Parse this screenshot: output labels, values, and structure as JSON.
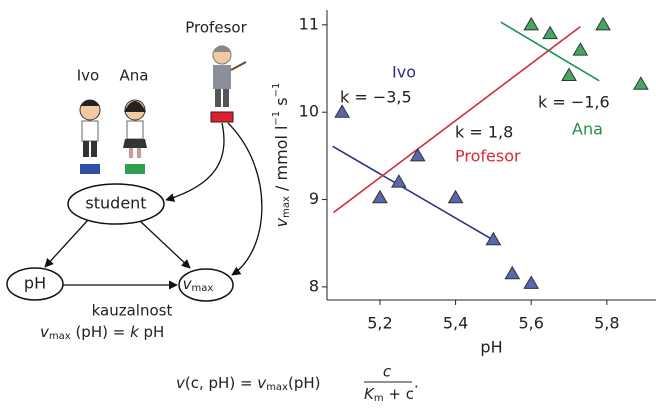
{
  "diagram": {
    "teacher": "Profesor",
    "students": [
      "Ivo",
      "Ana"
    ],
    "node_student": "student",
    "node_ph": "pH",
    "node_vmax": [
      "v",
      "max"
    ],
    "caption": "kauzalnost",
    "relation": [
      "v",
      "max",
      " (pH) = ",
      "k",
      "  pH"
    ]
  },
  "formula": [
    "v",
    "(c, pH) = ",
    "v",
    "max",
    "(pH)",
    "c",
    "K",
    "m",
    " + c",
    "."
  ],
  "chart_data": {
    "type": "scatter",
    "xlabel": "pH",
    "ylabel": [
      "v",
      "max",
      " / mmol l",
      "−1",
      " s",
      "−1"
    ],
    "xlim": [
      5.06,
      5.93
    ],
    "ylim": [
      7.85,
      11.17
    ],
    "xticks": [
      {
        "value": 5.2,
        "label": "5,2"
      },
      {
        "value": 5.4,
        "label": "5,4"
      },
      {
        "value": 5.6,
        "label": "5,6"
      },
      {
        "value": 5.8,
        "label": "5,8"
      }
    ],
    "yticks": [
      8,
      9,
      10,
      11
    ],
    "series": [
      {
        "type": "scatter",
        "color": "#5866b0",
        "x": [
          5.1,
          5.2,
          5.25,
          5.3,
          5.4,
          5.5,
          5.55,
          5.6
        ],
        "values": [
          10.0,
          9.02,
          9.2,
          9.5,
          9.02,
          8.54,
          8.15,
          8.04
        ]
      },
      {
        "type": "scatter",
        "color": "#45a860",
        "x": [
          5.6,
          5.65,
          5.7,
          5.73,
          5.79,
          5.89
        ],
        "values": [
          11.0,
          10.9,
          10.42,
          10.71,
          11.0,
          10.32
        ]
      },
      {
        "type": "line",
        "name": "Ivo",
        "label": "k = −3,5",
        "color": "#2b2f85",
        "x": [
          5.075,
          5.51
        ],
        "values": [
          9.61,
          8.51
        ]
      },
      {
        "type": "line",
        "name": "Profesor",
        "label": "k = 1,8",
        "color": "#d62a36",
        "x": [
          5.077,
          5.73
        ],
        "values": [
          8.85,
          10.98
        ]
      },
      {
        "type": "line",
        "name": "Ana",
        "label": "k = −1,6",
        "color": "#1f9150",
        "x": [
          5.52,
          5.78
        ],
        "values": [
          11.03,
          10.36
        ]
      }
    ]
  }
}
